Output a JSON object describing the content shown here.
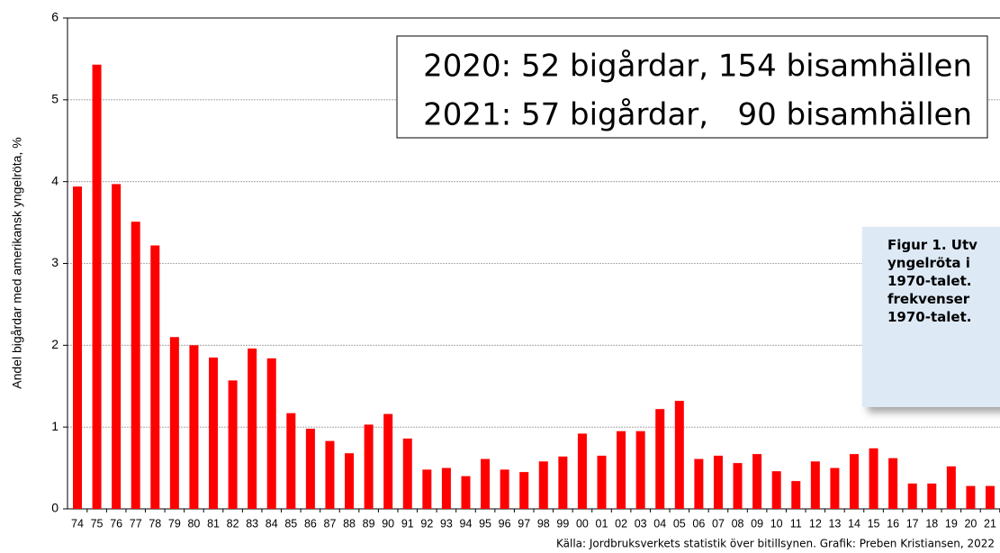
{
  "chart_data": {
    "type": "bar",
    "ylabel": "Andel bigårdar med amerikansk yngelröta, %",
    "categories": [
      "74",
      "75",
      "76",
      "77",
      "78",
      "79",
      "80",
      "81",
      "82",
      "83",
      "84",
      "85",
      "86",
      "87",
      "88",
      "89",
      "90",
      "91",
      "92",
      "93",
      "94",
      "95",
      "96",
      "97",
      "98",
      "99",
      "00",
      "01",
      "02",
      "03",
      "04",
      "05",
      "06",
      "07",
      "08",
      "09",
      "10",
      "11",
      "12",
      "13",
      "14",
      "15",
      "16",
      "17",
      "18",
      "19",
      "20",
      "21"
    ],
    "values": [
      3.94,
      5.43,
      3.97,
      3.51,
      3.22,
      2.1,
      2.0,
      1.85,
      1.57,
      1.96,
      1.84,
      1.17,
      0.98,
      0.83,
      0.68,
      1.03,
      1.16,
      0.86,
      0.48,
      0.5,
      0.4,
      0.61,
      0.48,
      0.45,
      0.58,
      0.64,
      0.92,
      0.65,
      0.95,
      0.95,
      1.22,
      1.32,
      0.61,
      0.65,
      0.56,
      0.67,
      0.46,
      0.34,
      0.58,
      0.5,
      0.67,
      0.74,
      0.62,
      0.31,
      0.31,
      0.52,
      0.28,
      0.28
    ],
    "color": "#ff0000",
    "ylim": [
      0,
      6
    ],
    "yticks": [
      0,
      1,
      2,
      3,
      4,
      5,
      6
    ],
    "grid": true,
    "annotations": [
      "2020: 52 bigårdar, 154 bisamhällen",
      "2021: 57 bigårdar,   90 bisamhällen"
    ],
    "caption": [
      "Figur 1. Utv",
      "yngelröta i",
      "1970-talet.",
      "frekvenser",
      "1970-talet."
    ],
    "source": "Källa: Jordbruksverkets statistik över bitillsynen. Grafik: Preben Kristiansen, 2022"
  }
}
